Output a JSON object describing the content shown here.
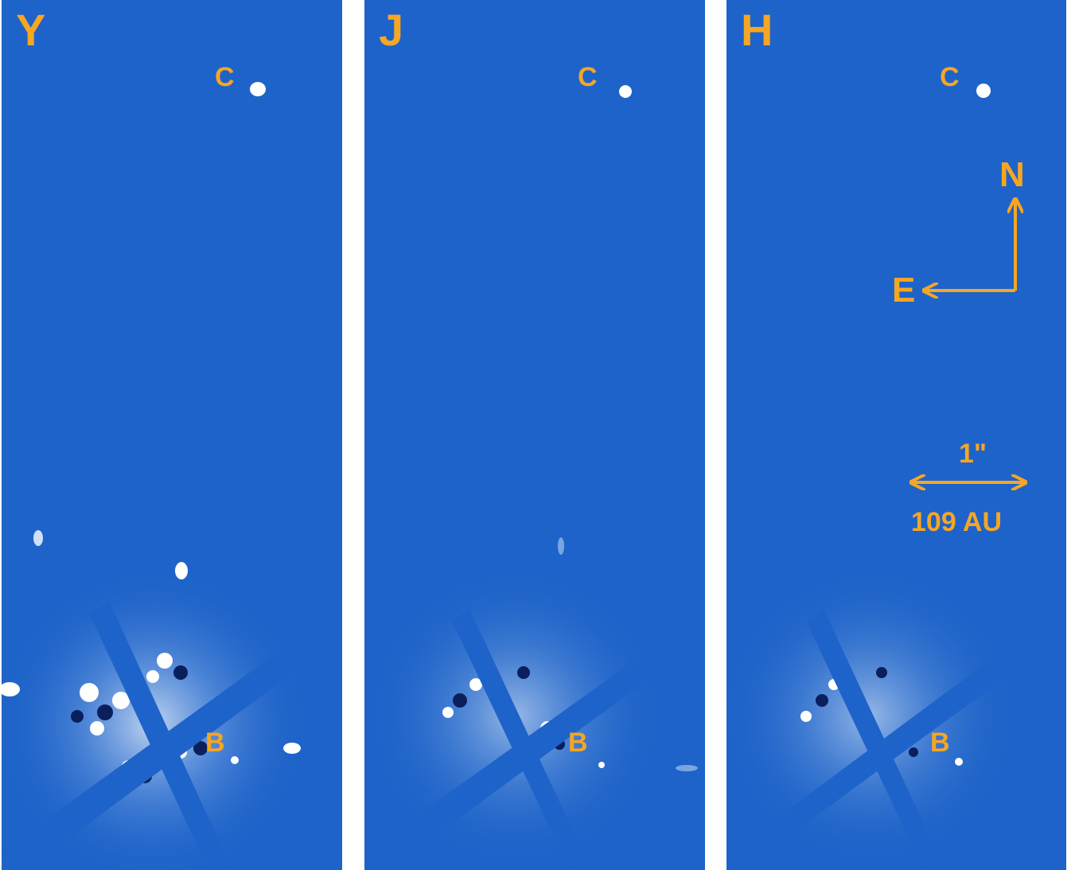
{
  "panels": [
    {
      "band": "Y",
      "companion_c": "C",
      "companion_b": "B"
    },
    {
      "band": "J",
      "companion_c": "C",
      "companion_b": "B"
    },
    {
      "band": "H",
      "companion_c": "C",
      "companion_b": "B"
    }
  ],
  "compass": {
    "north": "N",
    "east": "E"
  },
  "scale_bar": {
    "angle": "1\"",
    "distance": "109 AU"
  },
  "colors": {
    "background": "#1e63c9",
    "annotation": "#f5a623",
    "source": "#ffffff"
  }
}
